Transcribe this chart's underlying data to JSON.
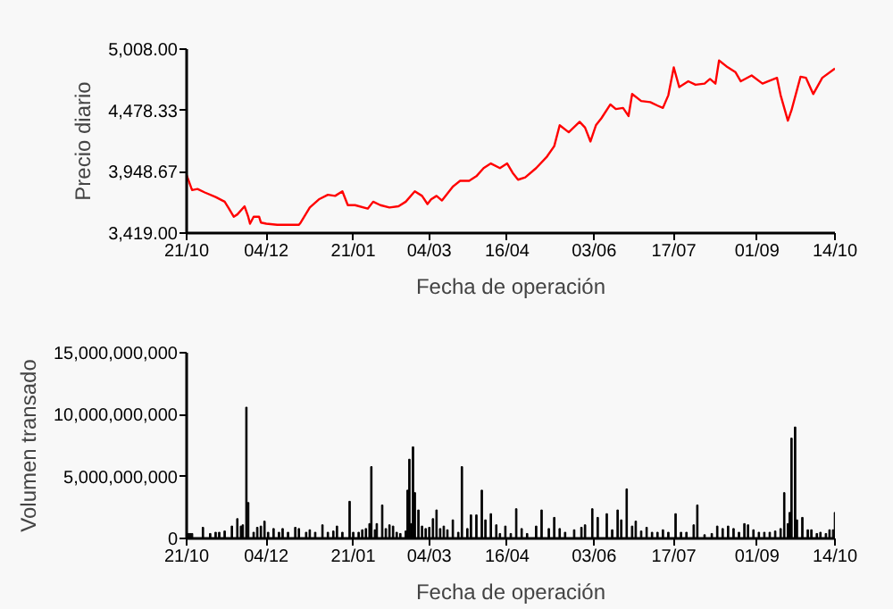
{
  "chart_data": [
    {
      "type": "line",
      "xlabel": "Fecha de operación",
      "ylabel": "Precio diario",
      "grid": false,
      "xlim": [
        "2001-10-21",
        "2002-10-14"
      ],
      "xticks": [
        {
          "value": "2001-10-21",
          "label": "21/10"
        },
        {
          "value": "2001-12-04",
          "label": "04/12"
        },
        {
          "value": "2002-01-21",
          "label": "21/01"
        },
        {
          "value": "2002-03-04",
          "label": "04/03"
        },
        {
          "value": "2002-04-16",
          "label": "16/04"
        },
        {
          "value": "2002-06-03",
          "label": "03/06"
        },
        {
          "value": "2002-07-17",
          "label": "17/07"
        },
        {
          "value": "2002-09-01",
          "label": "01/09"
        },
        {
          "value": "2002-10-14",
          "label": "14/10"
        }
      ],
      "ylim": [
        3419,
        5008
      ],
      "yticks": [
        {
          "value": 3419,
          "label": "3,419.00"
        },
        {
          "value": 3948.67,
          "label": "3,948.67"
        },
        {
          "value": 4478.33,
          "label": "4,478.33"
        },
        {
          "value": 5008,
          "label": "5,008.00"
        }
      ],
      "series": [
        {
          "color": "#ff0000",
          "x": [
            "2001-10-21",
            "2001-10-24",
            "2001-10-27",
            "2001-10-31",
            "2001-11-06",
            "2001-11-11",
            "2001-11-13",
            "2001-11-16",
            "2001-11-18",
            "2001-11-22",
            "2001-11-24",
            "2001-11-25",
            "2001-11-27",
            "2001-11-30",
            "2001-12-01",
            "2001-12-04",
            "2001-12-10",
            "2001-12-18",
            "2001-12-22",
            "2001-12-23",
            "2001-12-28",
            "2002-01-02",
            "2002-01-07",
            "2002-01-11",
            "2002-01-15",
            "2002-01-18",
            "2002-01-22",
            "2002-01-29",
            "2002-02-01",
            "2002-02-05",
            "2002-02-10",
            "2002-02-15",
            "2002-02-19",
            "2002-02-24",
            "2002-02-28",
            "2002-03-03",
            "2002-03-05",
            "2002-03-08",
            "2002-03-11",
            "2002-03-17",
            "2002-03-21",
            "2002-03-26",
            "2002-03-30",
            "2002-04-03",
            "2002-04-07",
            "2002-04-12",
            "2002-04-16",
            "2002-04-19",
            "2002-04-22",
            "2002-04-26",
            "2002-05-02",
            "2002-05-08",
            "2002-05-12",
            "2002-05-15",
            "2002-05-20",
            "2002-05-26",
            "2002-05-29",
            "2002-06-01",
            "2002-06-04",
            "2002-06-07",
            "2002-06-12",
            "2002-06-15",
            "2002-06-19",
            "2002-06-22",
            "2002-06-24",
            "2002-06-29",
            "2002-07-04",
            "2002-07-08",
            "2002-07-11",
            "2002-07-14",
            "2002-07-17",
            "2002-07-20",
            "2002-07-25",
            "2002-07-29",
            "2002-08-03",
            "2002-08-06",
            "2002-08-09",
            "2002-08-11",
            "2002-08-15",
            "2002-08-20",
            "2002-08-23",
            "2002-08-29",
            "2002-09-04",
            "2002-09-07",
            "2002-09-12",
            "2002-09-14",
            "2002-09-18",
            "2002-09-20",
            "2002-09-25",
            "2002-09-28",
            "2002-10-02",
            "2002-10-07",
            "2002-10-14"
          ],
          "values": [
            3920,
            3790,
            3800,
            3770,
            3730,
            3690,
            3640,
            3560,
            3580,
            3650,
            3560,
            3500,
            3560,
            3560,
            3510,
            3500,
            3490,
            3490,
            3490,
            3510,
            3640,
            3710,
            3750,
            3740,
            3780,
            3660,
            3660,
            3630,
            3690,
            3660,
            3640,
            3650,
            3690,
            3780,
            3740,
            3670,
            3710,
            3740,
            3700,
            3820,
            3870,
            3870,
            3910,
            3980,
            4020,
            3980,
            4020,
            3940,
            3880,
            3900,
            3980,
            4080,
            4170,
            4350,
            4290,
            4380,
            4330,
            4210,
            4350,
            4410,
            4530,
            4490,
            4500,
            4430,
            4620,
            4560,
            4550,
            4520,
            4500,
            4610,
            4850,
            4680,
            4730,
            4700,
            4710,
            4750,
            4710,
            4910,
            4860,
            4810,
            4730,
            4780,
            4710,
            4730,
            4760,
            4610,
            4390,
            4480,
            4770,
            4760,
            4620,
            4760,
            4840
          ]
        }
      ]
    },
    {
      "type": "bar",
      "xlabel": "Fecha de operación",
      "ylabel": "Volumen transado",
      "grid": false,
      "xlim": [
        "2001-10-21",
        "2002-10-14"
      ],
      "xticks": [
        {
          "value": "2001-10-21",
          "label": "21/10"
        },
        {
          "value": "2001-12-04",
          "label": "04/12"
        },
        {
          "value": "2002-01-21",
          "label": "21/01"
        },
        {
          "value": "2002-03-04",
          "label": "04/03"
        },
        {
          "value": "2002-04-16",
          "label": "16/04"
        },
        {
          "value": "2002-06-03",
          "label": "03/06"
        },
        {
          "value": "2002-07-17",
          "label": "17/07"
        },
        {
          "value": "2002-09-01",
          "label": "01/09"
        },
        {
          "value": "2002-10-14",
          "label": "14/10"
        }
      ],
      "ylim": [
        0,
        15000000000
      ],
      "yticks": [
        {
          "value": 0,
          "label": "0"
        },
        {
          "value": 5000000000,
          "label": "5,000,000,000"
        },
        {
          "value": 10000000000,
          "label": "10,000,000,000"
        },
        {
          "value": 15000000000,
          "label": "15,000,000,000"
        }
      ],
      "series": [
        {
          "color": "#000000",
          "x": [
            "2001-10-22",
            "2001-10-23",
            "2001-10-24",
            "2001-10-30",
            "2001-11-03",
            "2001-11-06",
            "2001-11-08",
            "2001-11-11",
            "2001-11-15",
            "2001-11-18",
            "2001-11-20",
            "2001-11-21",
            "2001-11-23",
            "2001-11-24",
            "2001-11-27",
            "2001-11-29",
            "2001-12-01",
            "2001-12-03",
            "2001-12-05",
            "2001-12-08",
            "2001-12-11",
            "2001-12-13",
            "2001-12-16",
            "2001-12-20",
            "2001-12-22",
            "2001-12-26",
            "2001-12-28",
            "2001-12-31",
            "2002-01-04",
            "2002-01-07",
            "2002-01-10",
            "2002-01-12",
            "2002-01-15",
            "2002-01-19",
            "2002-01-21",
            "2002-01-24",
            "2002-01-26",
            "2002-01-28",
            "2002-01-30",
            "2002-01-31",
            "2002-02-02",
            "2002-02-03",
            "2002-02-06",
            "2002-02-08",
            "2002-02-10",
            "2002-02-12",
            "2002-02-14",
            "2002-02-16",
            "2002-02-19",
            "2002-02-20",
            "2002-02-21",
            "2002-02-22",
            "2002-02-23",
            "2002-02-24",
            "2002-02-26",
            "2002-02-28",
            "2002-03-02",
            "2002-03-04",
            "2002-03-06",
            "2002-03-08",
            "2002-03-10",
            "2002-03-12",
            "2002-03-14",
            "2002-03-17",
            "2002-03-20",
            "2002-03-22",
            "2002-03-25",
            "2002-03-27",
            "2002-03-30",
            "2002-04-02",
            "2002-04-04",
            "2002-04-07",
            "2002-04-10",
            "2002-04-12",
            "2002-04-15",
            "2002-04-18",
            "2002-04-21",
            "2002-04-24",
            "2002-04-27",
            "2002-05-02",
            "2002-05-05",
            "2002-05-09",
            "2002-05-12",
            "2002-05-15",
            "2002-05-18",
            "2002-05-23",
            "2002-05-27",
            "2002-05-29",
            "2002-06-02",
            "2002-06-05",
            "2002-06-10",
            "2002-06-13",
            "2002-06-16",
            "2002-06-18",
            "2002-06-21",
            "2002-06-24",
            "2002-06-26",
            "2002-06-29",
            "2002-07-02",
            "2002-07-05",
            "2002-07-08",
            "2002-07-11",
            "2002-07-14",
            "2002-07-18",
            "2002-07-21",
            "2002-07-24",
            "2002-07-28",
            "2002-07-30",
            "2002-08-03",
            "2002-08-07",
            "2002-08-10",
            "2002-08-13",
            "2002-08-16",
            "2002-08-19",
            "2002-08-22",
            "2002-08-25",
            "2002-08-27",
            "2002-08-30",
            "2002-09-02",
            "2002-09-05",
            "2002-09-08",
            "2002-09-11",
            "2002-09-14",
            "2002-09-16",
            "2002-09-18",
            "2002-09-19",
            "2002-09-20",
            "2002-09-22",
            "2002-09-23",
            "2002-09-26",
            "2002-09-29",
            "2002-10-01",
            "2002-10-04",
            "2002-10-06",
            "2002-10-09",
            "2002-10-11",
            "2002-10-13",
            "2002-10-14"
          ],
          "values": [
            400000000.0,
            400000000.0,
            400000000.0,
            900000000.0,
            400000000.0,
            500000000.0,
            500000000.0,
            600000000.0,
            1000000000.0,
            1600000000.0,
            1000000000.0,
            1100000000.0,
            10600000000.0,
            2900000000.0,
            500000000.0,
            900000000.0,
            1000000000.0,
            1400000000.0,
            500000000.0,
            800000000.0,
            500000000.0,
            800000000.0,
            500000000.0,
            900000000.0,
            800000000.0,
            500000000.0,
            700000000.0,
            500000000.0,
            1100000000.0,
            500000000.0,
            600000000.0,
            1000000000.0,
            500000000.0,
            3000000000.0,
            500000000.0,
            500000000.0,
            700000000.0,
            800000000.0,
            1200000000.0,
            5800000000.0,
            700000000.0,
            1200000000.0,
            2700000000.0,
            800000000.0,
            1100000000.0,
            1000000000.0,
            500000000.0,
            400000000.0,
            600000000.0,
            3900000000.0,
            6400000000.0,
            1200000000.0,
            7400000000.0,
            3700000000.0,
            2300000000.0,
            1000000000.0,
            800000000.0,
            900000000.0,
            1600000000.0,
            2300000000.0,
            800000000.0,
            1000000000.0,
            700000000.0,
            1500000000.0,
            500000000.0,
            5800000000.0,
            800000000.0,
            1900000000.0,
            1900000000.0,
            3900000000.0,
            1500000000.0,
            2000000000.0,
            1100000000.0,
            400000000.0,
            1000000000.0,
            400000000.0,
            2400000000.0,
            800000000.0,
            400000000.0,
            1000000000.0,
            2300000000.0,
            800000000.0,
            1700000000.0,
            800000000.0,
            500000000.0,
            700000000.0,
            900000000.0,
            1100000000.0,
            2400000000.0,
            1700000000.0,
            2000000000.0,
            700000000.0,
            2300000000.0,
            1500000000.0,
            4000000000.0,
            1000000000.0,
            1400000000.0,
            600000000.0,
            900000000.0,
            500000000.0,
            500000000.0,
            700000000.0,
            500000000.0,
            2000000000.0,
            500000000.0,
            500000000.0,
            1100000000.0,
            2700000000.0,
            300000000.0,
            400000000.0,
            1000000000.0,
            800000000.0,
            1000000000.0,
            800000000.0,
            500000000.0,
            1200000000.0,
            1100000000.0,
            700000000.0,
            500000000.0,
            500000000.0,
            500000000.0,
            600000000.0,
            800000000.0,
            3700000000.0,
            1200000000.0,
            2100000000.0,
            8100000000.0,
            9000000000.0,
            1500000000.0,
            1700000000.0,
            700000000.0,
            700000000.0,
            400000000.0,
            500000000.0,
            400000000.0,
            700000000.0,
            700000000.0,
            2100000000.0
          ]
        }
      ]
    }
  ]
}
